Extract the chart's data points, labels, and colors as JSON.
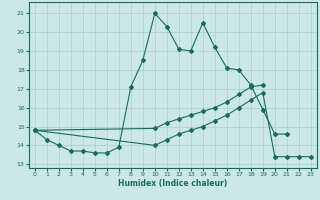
{
  "title": "",
  "xlabel": "Humidex (Indice chaleur)",
  "bg_color": "#cce8e4",
  "grid_color": "#aacfca",
  "line_color": "#1a6b5e",
  "xlim": [
    -0.5,
    23.5
  ],
  "ylim": [
    12.8,
    21.6
  ],
  "yticks": [
    13,
    14,
    15,
    16,
    17,
    18,
    19,
    20,
    21
  ],
  "xticks": [
    0,
    1,
    2,
    3,
    4,
    5,
    6,
    7,
    8,
    9,
    10,
    11,
    12,
    13,
    14,
    15,
    16,
    17,
    18,
    19,
    20,
    21,
    22,
    23
  ],
  "line1_x": [
    0,
    1,
    2,
    3,
    4,
    5,
    6,
    7,
    8,
    9,
    10,
    11,
    12,
    13,
    14,
    15,
    16,
    17,
    18,
    19,
    20,
    21
  ],
  "line1_y": [
    14.8,
    14.3,
    14.0,
    13.7,
    13.7,
    13.6,
    13.6,
    13.9,
    17.1,
    18.5,
    21.0,
    20.3,
    19.1,
    19.0,
    20.5,
    19.2,
    18.1,
    18.0,
    17.2,
    15.9,
    14.6,
    14.6
  ],
  "line2_x": [
    0,
    10,
    11,
    12,
    13,
    14,
    15,
    16,
    17,
    18,
    19
  ],
  "line2_y": [
    14.8,
    14.9,
    15.2,
    15.4,
    15.6,
    15.8,
    16.0,
    16.3,
    16.7,
    17.1,
    17.2
  ],
  "line3_x": [
    0,
    10,
    11,
    12,
    13,
    14,
    15,
    16,
    17,
    18,
    19,
    20,
    21,
    22,
    23
  ],
  "line3_y": [
    14.8,
    14.0,
    14.3,
    14.6,
    14.8,
    15.0,
    15.3,
    15.6,
    16.0,
    16.4,
    16.8,
    13.4,
    13.4,
    13.4,
    13.4
  ]
}
